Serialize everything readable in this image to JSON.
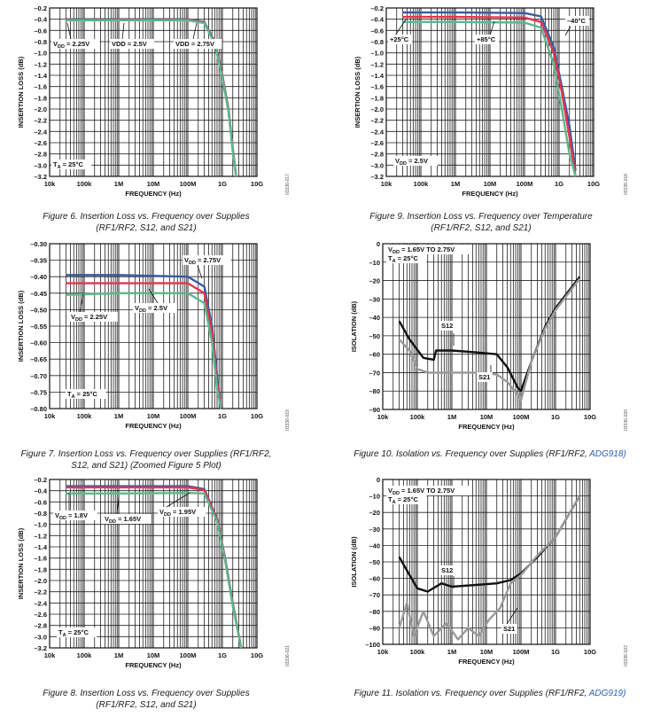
{
  "figures": [
    {
      "id": "fig6",
      "caption_l1": "Figure 6. Insertion Loss vs. Frequency over Supplies",
      "caption_l2": "(RF1/RF2, S12, and S21)",
      "caption_link": "",
      "side_code": "03336-017"
    },
    {
      "id": "fig9",
      "caption_l1": "Figure 9. Insertion Loss vs. Frequency over Temperature",
      "caption_l2": "(RF1/RF2, S12, and S21)",
      "caption_link": "",
      "side_code": "03336-018"
    },
    {
      "id": "fig7",
      "caption_l1": "Figure 7. Insertion Loss vs. Frequency over Supplies (RF1/RF2,",
      "caption_l2": "S12, and S21) (Zoomed Figure 5 Plot)",
      "caption_link": "",
      "side_code": "03336-019"
    },
    {
      "id": "fig10",
      "caption_l1": "Figure 10. Isolation vs. Frequency over Supplies (RF1/RF2, ",
      "caption_l2": "",
      "caption_link": "ADG918)",
      "side_code": "03336-020"
    },
    {
      "id": "fig8",
      "caption_l1": "Figure 8. Insertion Loss vs. Frequency over Supplies",
      "caption_l2": "(RF1/RF2, S12, and S21)",
      "caption_link": "",
      "side_code": "03336-021"
    },
    {
      "id": "fig11",
      "caption_l1": "Figure 11. Isolation vs. Frequency over Supplies (RF1/RF2, ",
      "caption_l2": "",
      "caption_link": "ADG919)",
      "side_code": "03336-022"
    }
  ],
  "chart_data": [
    {
      "id": "fig6",
      "type": "line",
      "xlabel": "FREQUENCY (Hz)",
      "ylabel": "INSERTION LOSS (dB)",
      "xscale": "log",
      "xlim": [
        10000,
        10000000000
      ],
      "xticks": [
        "10k",
        "100k",
        "1M",
        "10M",
        "100M",
        "1G",
        "10G"
      ],
      "ylim": [
        -3.2,
        -0.2
      ],
      "ystep": 0.2,
      "annotations": [
        {
          "text": "VDD = 2.25V",
          "sub": "DD",
          "x": 1.8
        },
        {
          "text": "VDD = 2.5V"
        },
        {
          "text": "VDD = 2.75V"
        },
        {
          "text": "TA = 25°C",
          "sub": "A"
        }
      ],
      "series": [
        {
          "color": "#3a5ba0",
          "values": [
            [
              30000,
              -0.4
            ],
            [
              1000000,
              -0.4
            ],
            [
              100000000,
              -0.4
            ],
            [
              300000000,
              -0.45
            ],
            [
              600000000,
              -0.8
            ],
            [
              1000000000,
              -1.4
            ],
            [
              1500000000,
              -2.0
            ],
            [
              2000000000,
              -2.7
            ],
            [
              2500000000,
              -3.2
            ]
          ]
        },
        {
          "color": "#e8344e",
          "values": [
            [
              30000,
              -0.41
            ],
            [
              1000000,
              -0.41
            ],
            [
              100000000,
              -0.41
            ],
            [
              300000000,
              -0.46
            ],
            [
              600000000,
              -0.82
            ],
            [
              1000000000,
              -1.42
            ],
            [
              1500000000,
              -2.02
            ],
            [
              2000000000,
              -2.72
            ],
            [
              2500000000,
              -3.2
            ]
          ]
        },
        {
          "color": "#5cb88c",
          "values": [
            [
              30000,
              -0.42
            ],
            [
              1000000,
              -0.42
            ],
            [
              100000000,
              -0.42
            ],
            [
              300000000,
              -0.47
            ],
            [
              600000000,
              -0.84
            ],
            [
              1000000000,
              -1.45
            ],
            [
              1500000000,
              -2.05
            ],
            [
              2000000000,
              -2.75
            ],
            [
              2500000000,
              -3.2
            ]
          ]
        }
      ]
    },
    {
      "id": "fig9",
      "type": "line",
      "xlabel": "FREQUENCY (Hz)",
      "ylabel": "INSERTION LOSS (dB)",
      "xscale": "log",
      "xlim": [
        10000,
        10000000000
      ],
      "xticks": [
        "10k",
        "100k",
        "1M",
        "10M",
        "100M",
        "1G",
        "10G"
      ],
      "ylim": [
        -3.2,
        -0.2
      ],
      "ystep": 0.2,
      "annotations": [
        {
          "text": "+25°C"
        },
        {
          "text": "+85°C"
        },
        {
          "text": "–40°C"
        },
        {
          "text": "VDD = 2.5V",
          "sub": "DD"
        }
      ],
      "series": [
        {
          "color": "#3a5ba0",
          "values": [
            [
              30000,
              -0.28
            ],
            [
              1000000,
              -0.28
            ],
            [
              100000000,
              -0.29
            ],
            [
              300000000,
              -0.35
            ],
            [
              700000000,
              -0.9
            ],
            [
              1200000000,
              -1.6
            ],
            [
              2000000000,
              -2.3
            ],
            [
              3000000000,
              -3.1
            ]
          ]
        },
        {
          "color": "#e8344e",
          "values": [
            [
              30000,
              -0.36
            ],
            [
              1000000,
              -0.36
            ],
            [
              100000000,
              -0.37
            ],
            [
              300000000,
              -0.45
            ],
            [
              700000000,
              -1.0
            ],
            [
              1200000000,
              -1.7
            ],
            [
              2000000000,
              -2.5
            ],
            [
              3000000000,
              -3.2
            ]
          ]
        },
        {
          "color": "#5cb88c",
          "values": [
            [
              30000,
              -0.45
            ],
            [
              1000000,
              -0.45
            ],
            [
              100000000,
              -0.46
            ],
            [
              300000000,
              -0.55
            ],
            [
              700000000,
              -1.2
            ],
            [
              1200000000,
              -2.0
            ],
            [
              2000000000,
              -2.8
            ],
            [
              3000000000,
              -3.2
            ]
          ]
        }
      ]
    },
    {
      "id": "fig7",
      "type": "line",
      "xlabel": "FREQUENCY (Hz)",
      "ylabel": "INSERTION LOSS (dB)",
      "xscale": "log",
      "xlim": [
        10000,
        10000000000
      ],
      "xticks": [
        "10k",
        "100k",
        "1M",
        "10M",
        "100M",
        "1G",
        "10G"
      ],
      "ylim": [
        -0.8,
        -0.3
      ],
      "ystep": 0.05,
      "annotations": [
        {
          "text": "VDD = 2.75V",
          "sub": "DD"
        },
        {
          "text": "VDD = 2.5V",
          "sub": "DD"
        },
        {
          "text": "VDD = 2.25V",
          "sub": "DD"
        },
        {
          "text": "TA = 25°C",
          "sub": "A"
        }
      ],
      "series": [
        {
          "color": "#3a5ba0",
          "values": [
            [
              30000,
              -0.395
            ],
            [
              1000000,
              -0.395
            ],
            [
              100000000,
              -0.4
            ],
            [
              300000000,
              -0.43
            ],
            [
              500000000,
              -0.55
            ],
            [
              700000000,
              -0.7
            ],
            [
              900000000,
              -0.8
            ]
          ]
        },
        {
          "color": "#e8344e",
          "values": [
            [
              30000,
              -0.42
            ],
            [
              1000000,
              -0.42
            ],
            [
              100000000,
              -0.42
            ],
            [
              300000000,
              -0.45
            ],
            [
              500000000,
              -0.57
            ],
            [
              700000000,
              -0.72
            ],
            [
              900000000,
              -0.8
            ]
          ]
        },
        {
          "color": "#5cb88c",
          "values": [
            [
              30000,
              -0.455
            ],
            [
              1000000,
              -0.45
            ],
            [
              100000000,
              -0.45
            ],
            [
              300000000,
              -0.48
            ],
            [
              500000000,
              -0.6
            ],
            [
              700000000,
              -0.74
            ],
            [
              900000000,
              -0.8
            ]
          ]
        }
      ]
    },
    {
      "id": "fig10",
      "type": "line",
      "xlabel": "FREQUENCY (Hz)",
      "ylabel": "ISOLATION (dB)",
      "xscale": "log",
      "xlim": [
        10000,
        10000000000
      ],
      "xticks": [
        "10k",
        "100k",
        "1M",
        "10M",
        "100M",
        "1G",
        "10G"
      ],
      "ylim": [
        -90,
        0
      ],
      "ystep": 10,
      "annotations": [
        {
          "text": "VDD = 1.65V TO 2.75V",
          "sub": "DD"
        },
        {
          "text": "TA = 25°C",
          "sub": "A"
        },
        {
          "text": "S12"
        },
        {
          "text": "S21"
        }
      ],
      "series": [
        {
          "name": "S12",
          "color": "#111111",
          "values": [
            [
              30000,
              -42
            ],
            [
              60000,
              -52
            ],
            [
              150000,
              -62
            ],
            [
              300000,
              -63
            ],
            [
              350000,
              -58
            ],
            [
              1000000,
              -58
            ],
            [
              5000000,
              -59
            ],
            [
              20000000,
              -60
            ],
            [
              40000000,
              -67
            ],
            [
              80000000,
              -78
            ],
            [
              100000000,
              -80
            ],
            [
              200000000,
              -64
            ],
            [
              500000000,
              -45
            ],
            [
              1000000000,
              -35
            ],
            [
              5000000000,
              -18
            ]
          ]
        },
        {
          "name": "S21",
          "color": "#999999",
          "values": [
            [
              30000,
              -52
            ],
            [
              60000,
              -58
            ],
            [
              100000,
              -68
            ],
            [
              200000,
              -70
            ],
            [
              1000000,
              -70
            ],
            [
              5000000,
              -70
            ],
            [
              20000000,
              -71
            ],
            [
              40000000,
              -75
            ],
            [
              80000000,
              -82
            ],
            [
              100000000,
              -85
            ],
            [
              200000000,
              -64
            ],
            [
              500000000,
              -46
            ],
            [
              1000000000,
              -36
            ],
            [
              5000000000,
              -19
            ]
          ]
        }
      ]
    },
    {
      "id": "fig8",
      "type": "line",
      "xlabel": "FREQUENCY (Hz)",
      "ylabel": "INSERTION LOSS (dB)",
      "xscale": "log",
      "xlim": [
        10000,
        10000000000
      ],
      "xticks": [
        "10k",
        "100k",
        "1M",
        "10M",
        "100M",
        "1G",
        "10G"
      ],
      "ylim": [
        -3.2,
        -0.2
      ],
      "ystep": 0.2,
      "annotations": [
        {
          "text": "VDD = 1.8V",
          "sub": "DD"
        },
        {
          "text": "VDD = 1.65V",
          "sub": "DD"
        },
        {
          "text": "VDD = 1.95V",
          "sub": "DD"
        },
        {
          "text": "TA = 25°C",
          "sub": "A"
        }
      ],
      "series": [
        {
          "color": "#3a5ba0",
          "values": [
            [
              30000,
              -0.32
            ],
            [
              1000000,
              -0.32
            ],
            [
              100000000,
              -0.32
            ],
            [
              300000000,
              -0.37
            ],
            [
              700000000,
              -0.9
            ],
            [
              1200000000,
              -1.6
            ],
            [
              2000000000,
              -2.4
            ],
            [
              3500000000,
              -3.2
            ]
          ]
        },
        {
          "color": "#e8344e",
          "values": [
            [
              30000,
              -0.34
            ],
            [
              1000000,
              -0.34
            ],
            [
              100000000,
              -0.34
            ],
            [
              300000000,
              -0.39
            ],
            [
              700000000,
              -0.92
            ],
            [
              1200000000,
              -1.62
            ],
            [
              2000000000,
              -2.42
            ],
            [
              3500000000,
              -3.2
            ]
          ]
        },
        {
          "color": "#5cb88c",
          "values": [
            [
              30000,
              -0.45
            ],
            [
              1000000,
              -0.45
            ],
            [
              100000000,
              -0.44
            ],
            [
              300000000,
              -0.45
            ],
            [
              700000000,
              -0.95
            ],
            [
              1200000000,
              -1.65
            ],
            [
              2000000000,
              -2.45
            ],
            [
              3500000000,
              -3.2
            ]
          ]
        }
      ]
    },
    {
      "id": "fig11",
      "type": "line",
      "xlabel": "FREQUENCY (Hz)",
      "ylabel": "ISOLATION (dB)",
      "xscale": "log",
      "xlim": [
        10000,
        10000000000
      ],
      "xticks": [
        "10k",
        "100k",
        "1M",
        "10M",
        "100M",
        "1G",
        "10G"
      ],
      "ylim": [
        -100,
        0
      ],
      "ystep": 10,
      "annotations": [
        {
          "text": "VDD = 1.65V TO 2.75V",
          "sub": "DD"
        },
        {
          "text": "TA = 25°C",
          "sub": "A"
        },
        {
          "text": "S12"
        },
        {
          "text": "S21"
        }
      ],
      "series": [
        {
          "name": "S12",
          "color": "#111111",
          "values": [
            [
              30000,
              -47
            ],
            [
              60000,
              -58
            ],
            [
              100000,
              -66
            ],
            [
              200000,
              -68
            ],
            [
              500000,
              -63
            ],
            [
              1000000,
              -65
            ],
            [
              5000000,
              -64
            ],
            [
              20000000,
              -63
            ],
            [
              50000000,
              -61
            ],
            [
              100000000,
              -57
            ],
            [
              300000000,
              -47
            ],
            [
              1000000000,
              -35
            ],
            [
              5000000000,
              -10
            ]
          ]
        },
        {
          "name": "S21",
          "color": "#999999",
          "values": [
            [
              30000,
              -90
            ],
            [
              50000,
              -75
            ],
            [
              80000,
              -95
            ],
            [
              150000,
              -80
            ],
            [
              300000,
              -95
            ],
            [
              700000,
              -87
            ],
            [
              1500000,
              -97
            ],
            [
              3000000,
              -90
            ],
            [
              6000000,
              -95
            ],
            [
              12000000,
              -85
            ],
            [
              25000000,
              -78
            ],
            [
              50000000,
              -63
            ],
            [
              100000000,
              -58
            ],
            [
              300000000,
              -46
            ],
            [
              1000000000,
              -35
            ],
            [
              5000000000,
              -10
            ]
          ]
        }
      ]
    }
  ]
}
